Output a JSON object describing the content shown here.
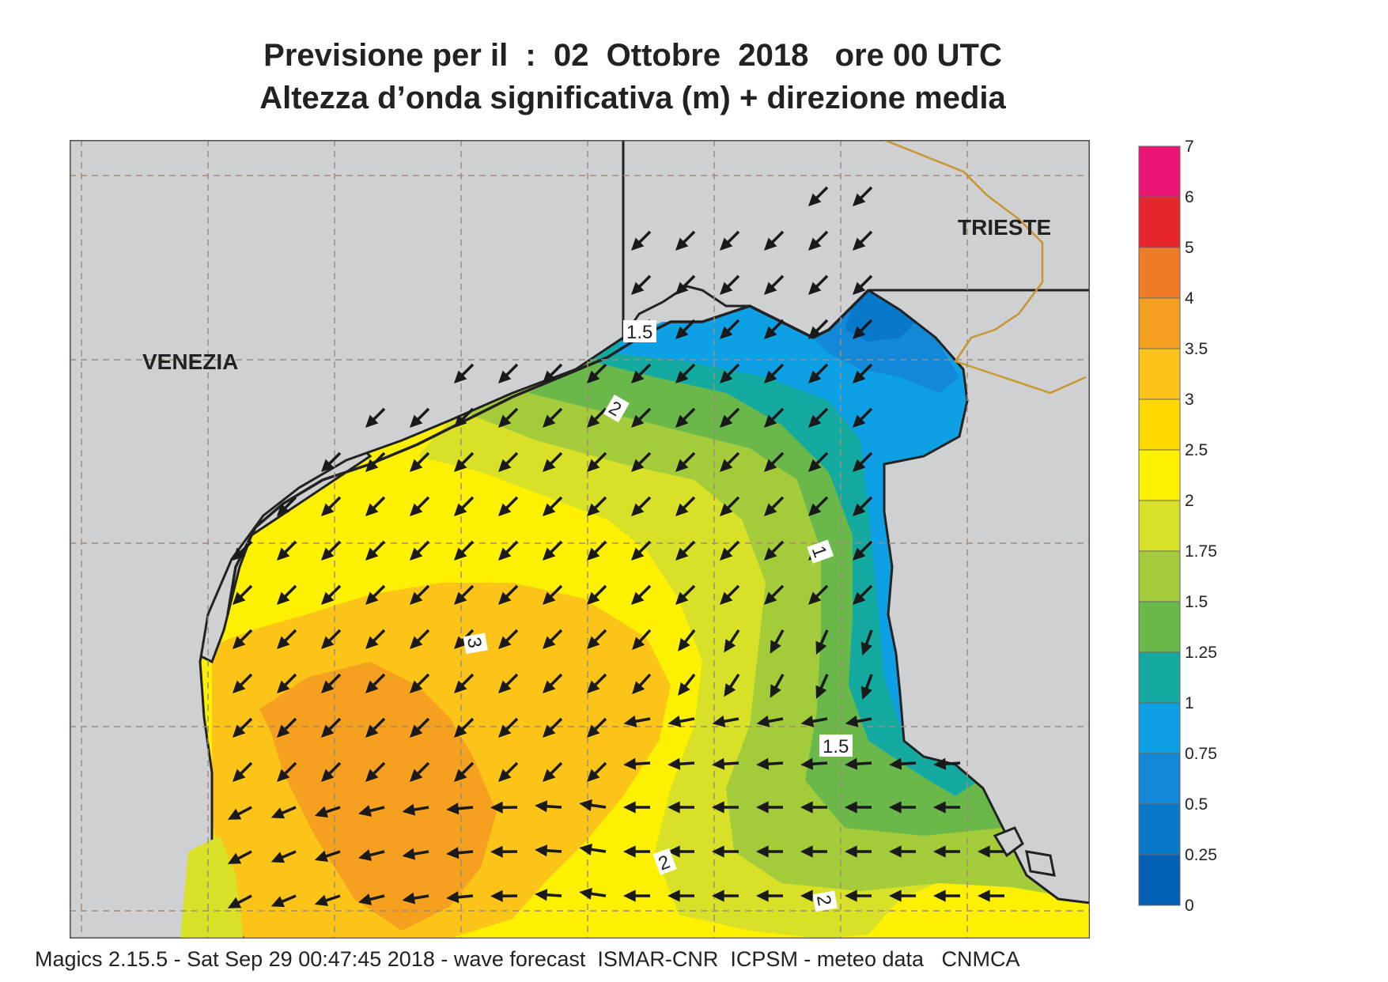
{
  "title": {
    "line1": "Previsione per il  :  02  Ottobre  2018   ore 00 UTC",
    "line2": "Altezza d’onda significativa (m) + direzione media"
  },
  "map": {
    "cities": [
      {
        "name": "VENEZIA"
      },
      {
        "name": "TRIESTE"
      }
    ],
    "contour_labels": [
      "1.5",
      "2",
      "1",
      "3",
      "1.5",
      "2",
      "2"
    ],
    "colors": {
      "land": "#cfd0d2",
      "coastline": "#222222",
      "border": "#c8962d",
      "gridline": "#a08c78"
    },
    "arrow_direction": "mostly toward southwest, turning westward in the southern part"
  },
  "legend": {
    "ticks": [
      "7",
      "6",
      "5",
      "4",
      "3.5",
      "3",
      "2.5",
      "2",
      "1.75",
      "1.5",
      "1.25",
      "1",
      "0.75",
      "0.5",
      "0.25",
      "0"
    ],
    "colors": [
      "#ec1476",
      "#e8242c",
      "#f07a25",
      "#f5a01e",
      "#fcc418",
      "#ffd800",
      "#fdf000",
      "#d8e028",
      "#a4cc3a",
      "#6ab84a",
      "#14aaa0",
      "#0ea0e4",
      "#1488d8",
      "#0878c8",
      "#0460b4"
    ]
  },
  "footer": "Magics 2.15.5 - Sat Sep 29 00:47:45 2018 - wave forecast  ISMAR-CNR  ICPSM - meteo data   CNMCA"
}
